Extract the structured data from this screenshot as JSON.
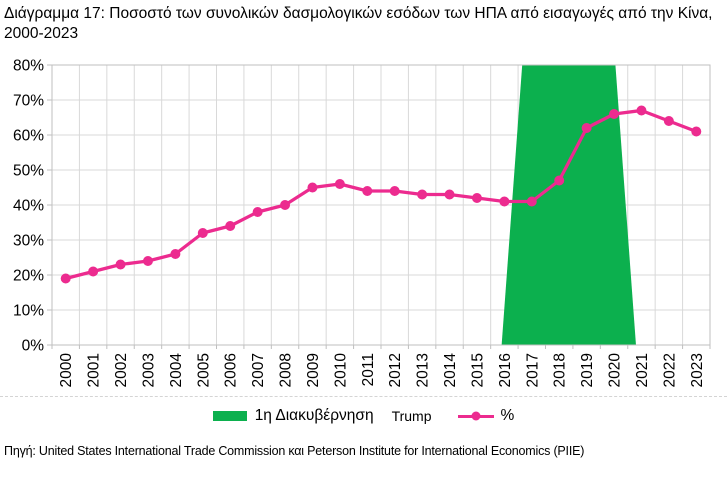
{
  "title": "Διάγραμμα 17: Ποσοστό των συνολικών δασμολογικών εσόδων των ΗΠΑ από εισαγωγές από την Κίνα, 2000-2023",
  "source": "Πηγή: United States International Trade Commission και Peterson Institute for International Economics (PIIE)",
  "legend": {
    "band_label": "1η Διακυβέρνηση",
    "band_label_latin": "Trump",
    "line_label": "%"
  },
  "colors": {
    "line": "#EC2B8F",
    "band": "#0CB04E",
    "grid": "#D9D9D9",
    "axis": "#BFBFBF",
    "text": "#000000"
  },
  "chart_data": {
    "type": "line",
    "title": "",
    "xlabel": "",
    "ylabel": "",
    "categories": [
      "2000",
      "2001",
      "2002",
      "2003",
      "2004",
      "2005",
      "2006",
      "2007",
      "2008",
      "2009",
      "2010",
      "2011",
      "2012",
      "2013",
      "2014",
      "2015",
      "2016",
      "2017",
      "2018",
      "2019",
      "2020",
      "2021",
      "2022",
      "2023"
    ],
    "series": [
      {
        "name": "%",
        "color": "#EC2B8F",
        "marker": "circle",
        "values": [
          19,
          21,
          23,
          24,
          26,
          32,
          34,
          38,
          40,
          45,
          46,
          44,
          44,
          43,
          43,
          42,
          41,
          41,
          47,
          62,
          66,
          67,
          64,
          61
        ]
      }
    ],
    "ylim": [
      0,
      80
    ],
    "ytick_step": 10,
    "ytick_suffix": "%",
    "grid": true,
    "legend_position": "bottom",
    "band": {
      "name": "1η Διακυβέρνηση Trump",
      "color": "#0CB04E",
      "top_years": [
        2016.65,
        2020.05
      ],
      "bottom_years": [
        2015.9,
        2020.8
      ]
    }
  }
}
